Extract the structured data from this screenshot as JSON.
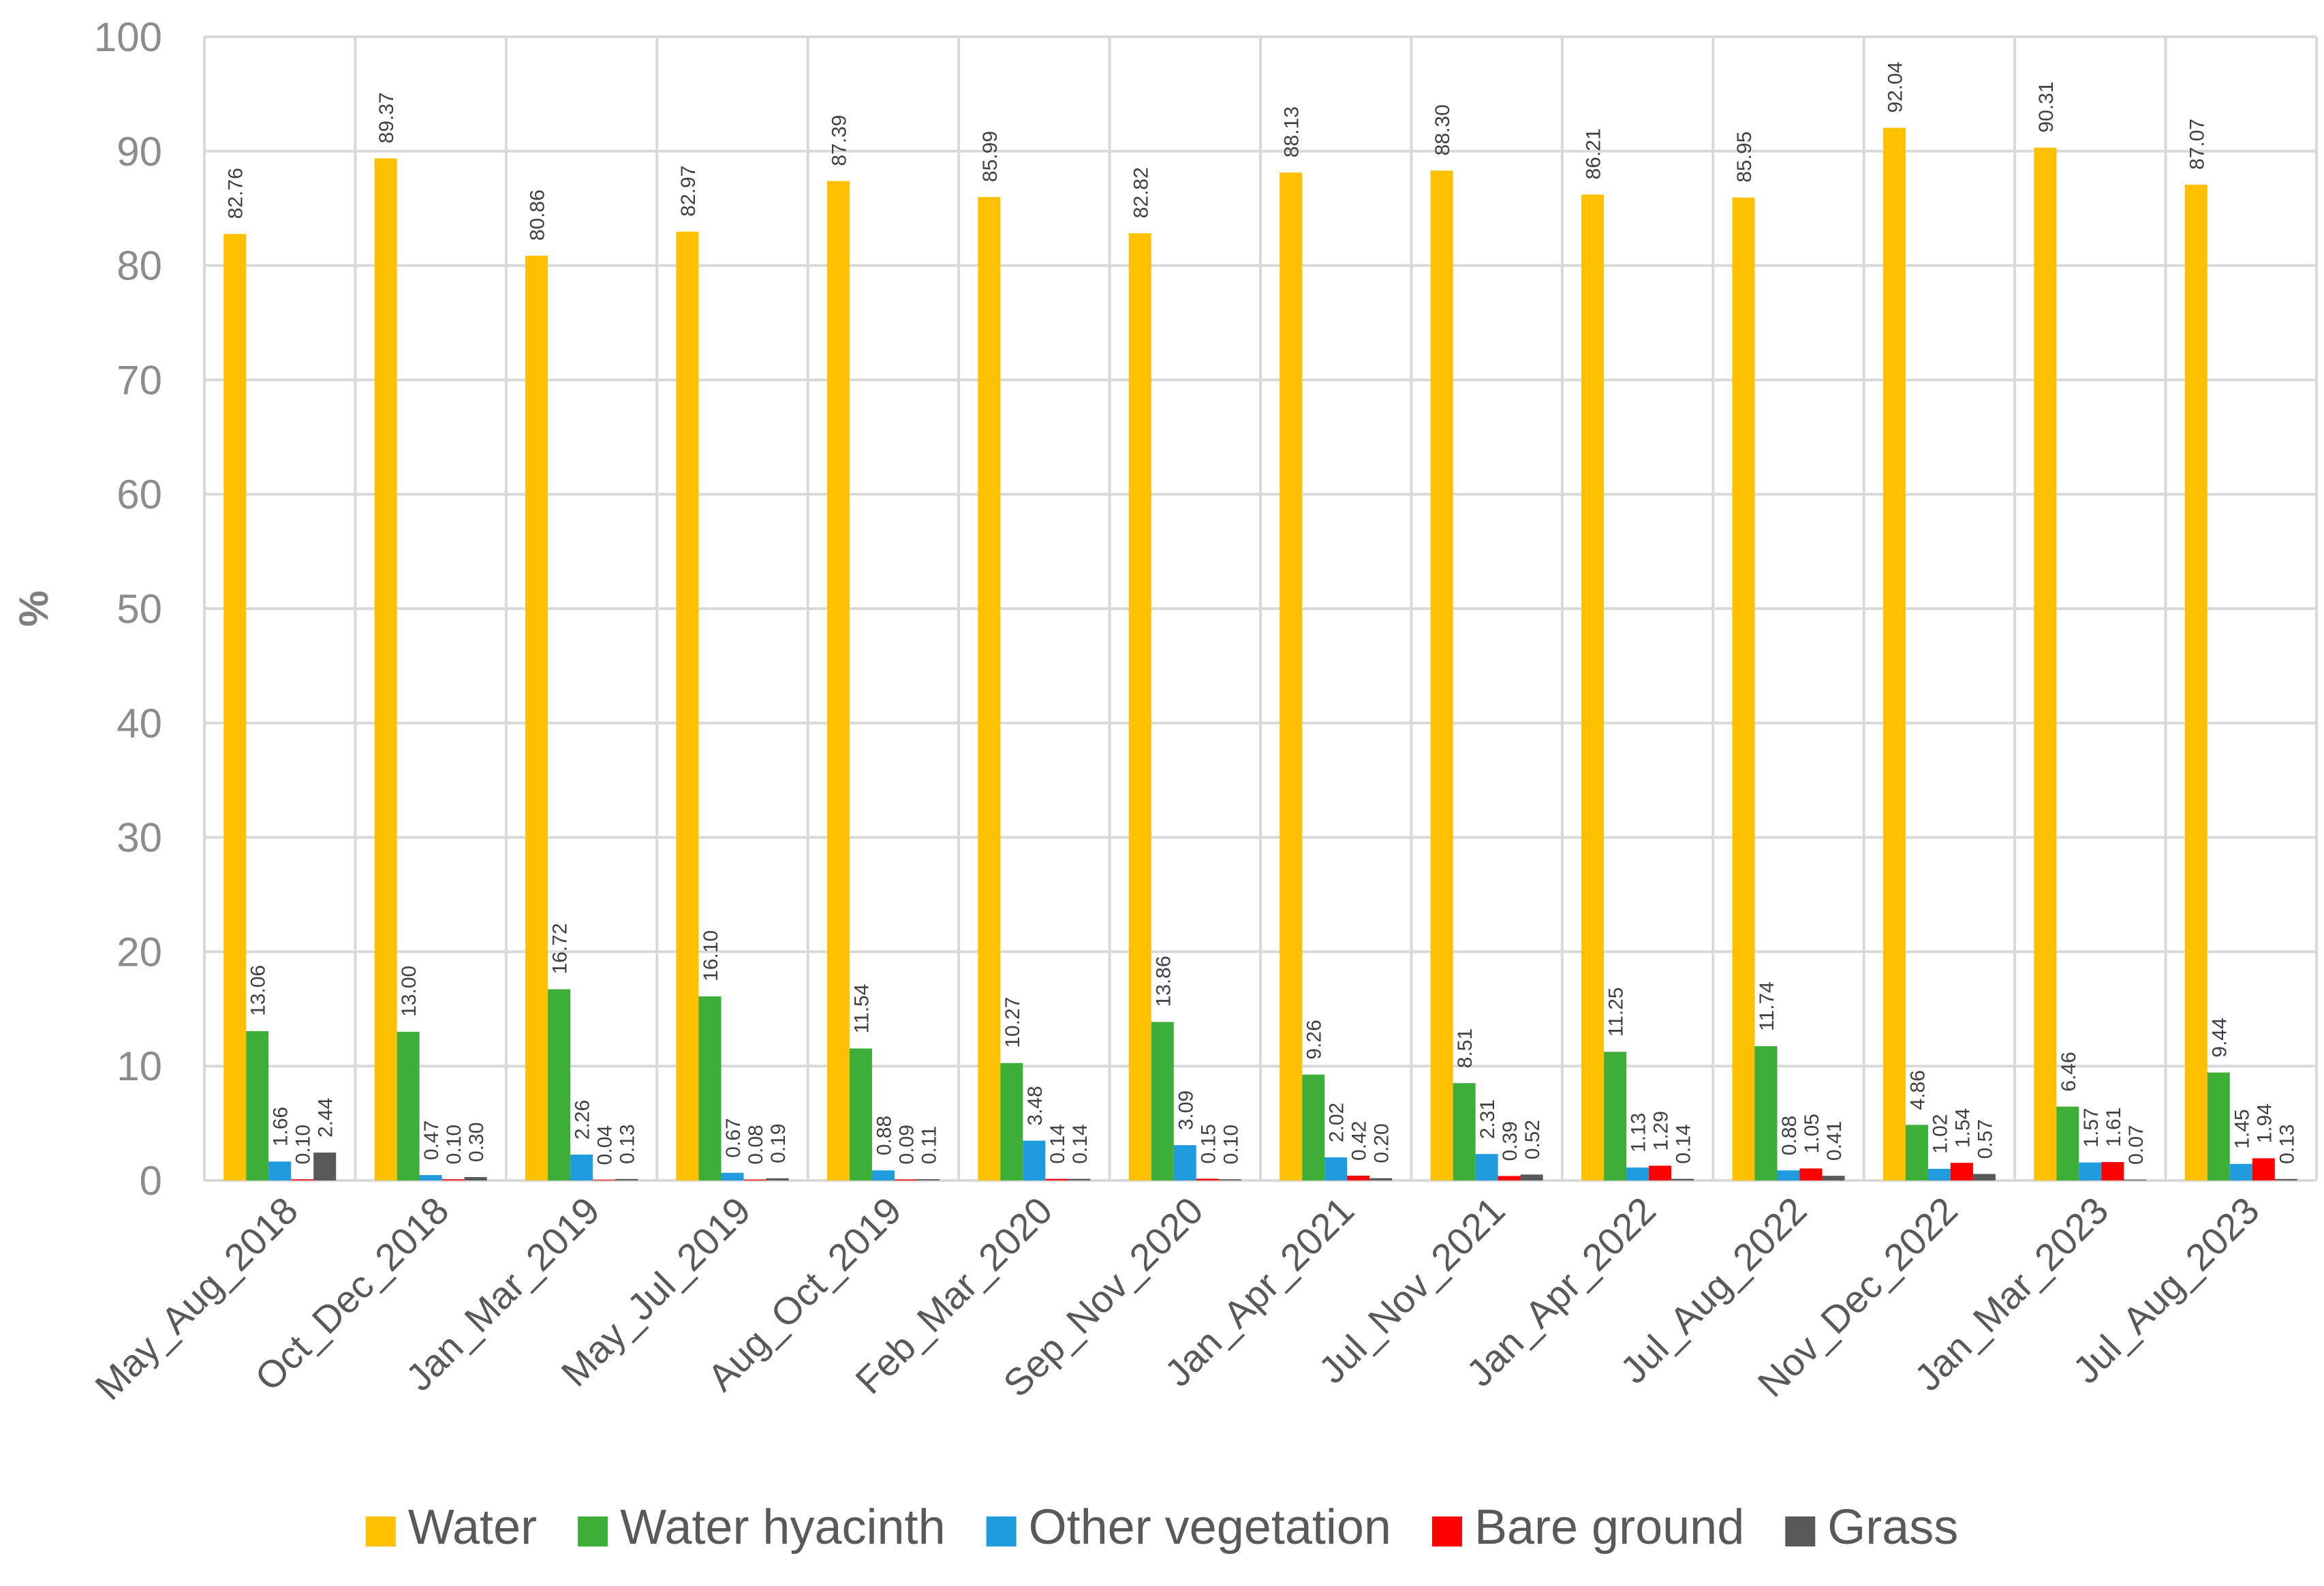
{
  "chart_data": {
    "type": "bar",
    "title": "",
    "xlabel": "",
    "ylabel": "%",
    "ylim": [
      0,
      100
    ],
    "yticks": [
      0,
      10,
      20,
      30,
      40,
      50,
      60,
      70,
      80,
      90,
      100
    ],
    "grid": true,
    "legend_position": "bottom",
    "categories": [
      "May_Aug_2018",
      "Oct_Dec_2018",
      "Jan_Mar_2019",
      "May_Jul_2019",
      "Aug_Oct_2019",
      "Feb_Mar_2020",
      "Sep_Nov_2020",
      "Jan_Apr_2021",
      "Jul_Nov_2021",
      "Jan_Apr_2022",
      "Jul_Aug_2022",
      "Nov_Dec_2022",
      "Jan_Mar_2023",
      "Jul_Aug_2023"
    ],
    "series": [
      {
        "name": "Water",
        "color": "#FFC000",
        "values": [
          82.76,
          89.37,
          80.86,
          82.97,
          87.39,
          85.99,
          82.82,
          88.13,
          88.3,
          86.21,
          85.95,
          92.04,
          90.31,
          87.07
        ],
        "labels": [
          "82.76",
          "89.37",
          "80.86",
          "82.97",
          "87.39",
          "85.99",
          "82.82",
          "88.13",
          "88.30",
          "86.21",
          "85.95",
          "92.04",
          "90.31",
          "87.07"
        ]
      },
      {
        "name": "Water hyacinth",
        "color": "#3DAE37",
        "values": [
          13.06,
          13.0,
          16.72,
          16.1,
          11.54,
          10.27,
          13.86,
          9.26,
          8.51,
          11.25,
          11.74,
          4.86,
          6.46,
          9.44
        ],
        "labels": [
          "13.06",
          "13.00",
          "16.72",
          "16.10",
          "11.54",
          "10.27",
          "13.86",
          "9.26",
          "8.51",
          "11.25",
          "11.74",
          "4.86",
          "6.46",
          "9.44"
        ]
      },
      {
        "name": "Other vegetation",
        "color": "#1F9BDE",
        "values": [
          1.66,
          0.47,
          2.26,
          0.67,
          0.88,
          3.48,
          3.09,
          2.02,
          2.31,
          1.13,
          0.88,
          1.02,
          1.57,
          1.45
        ],
        "labels": [
          "1.66",
          "0.47",
          "2.26",
          "0.67",
          "0.88",
          "3.48",
          "3.09",
          "2.02",
          "2.31",
          "1.13",
          "0.88",
          "1.02",
          "1.57",
          "1.45"
        ]
      },
      {
        "name": "Bare ground",
        "color": "#FF0000",
        "values": [
          0.1,
          0.1,
          0.04,
          0.08,
          0.09,
          0.14,
          0.15,
          0.42,
          0.39,
          1.29,
          1.05,
          1.54,
          1.61,
          1.94
        ],
        "labels": [
          "0.10",
          "0.10",
          "0.04",
          "0.08",
          "0.09",
          "0.14",
          "0.15",
          "0.42",
          "0.39",
          "1.29",
          "1.05",
          "1.54",
          "1.61",
          "1.94"
        ]
      },
      {
        "name": "Grass",
        "color": "#595959",
        "values": [
          2.44,
          0.3,
          0.13,
          0.19,
          0.11,
          0.14,
          0.1,
          0.2,
          0.52,
          0.14,
          0.41,
          0.57,
          0.07,
          0.13
        ],
        "labels": [
          "2.44",
          "0.30",
          "0.13",
          "0.19",
          "0.11",
          "0.14",
          "0.10",
          "0.20",
          "0.52",
          "0.14",
          "0.41",
          "0.57",
          "0.07",
          "0.13"
        ]
      }
    ]
  }
}
